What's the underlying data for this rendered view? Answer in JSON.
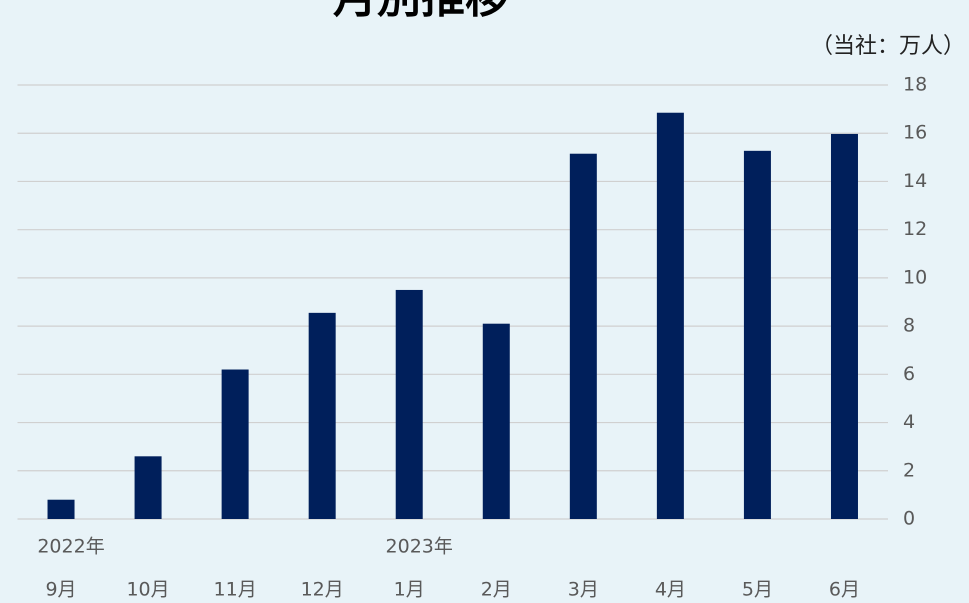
{
  "chart_data": {
    "type": "bar",
    "title": "月別推移",
    "unit_label": "（当社：万人）",
    "categories": [
      "9月",
      "10月",
      "11月",
      "12月",
      "1月",
      "2月",
      "3月",
      "4月",
      "5月",
      "6月"
    ],
    "year_labels": [
      "2022年",
      null,
      null,
      null,
      "2023年",
      null,
      null,
      null,
      null,
      null
    ],
    "values": [
      0.8,
      2.6,
      6.2,
      8.55,
      9.5,
      8.1,
      15.15,
      16.85,
      15.27,
      15.97
    ],
    "color": "#001f5b",
    "ylim": [
      0,
      18
    ],
    "yticks": [
      0,
      2,
      4,
      6,
      8,
      10,
      12,
      14,
      16,
      18
    ],
    "y_axis_side": "right",
    "grid": true
  }
}
